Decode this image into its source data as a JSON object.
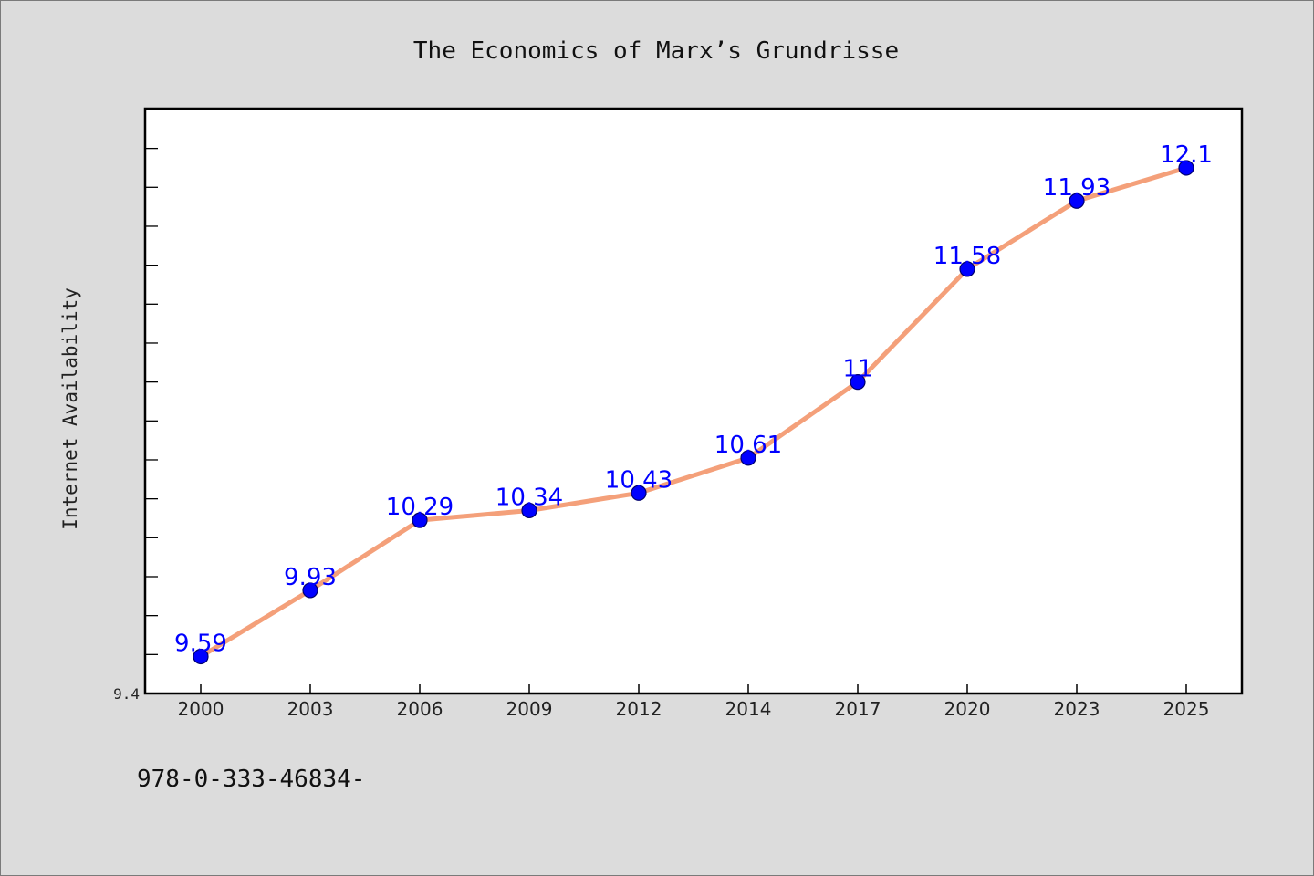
{
  "chart_data": {
    "type": "line",
    "title": "The Economics of Marx’s Grundrisse",
    "xlabel": "",
    "ylabel": "Internet Availability",
    "categories": [
      "2000",
      "2003",
      "2006",
      "2009",
      "2012",
      "2014",
      "2017",
      "2020",
      "2023",
      "2025"
    ],
    "series": [
      {
        "values": [
          9.59,
          9.93,
          10.29,
          10.34,
          10.43,
          10.61,
          11,
          11.58,
          11.93,
          12.1
        ],
        "data_labels": [
          "9.59",
          "9.93",
          "10.29",
          "10.34",
          "10.43",
          "10.61",
          "11",
          "11.58",
          "11.93",
          "12.1"
        ],
        "line_color": "#f4a07a",
        "marker_color": "#0000ff"
      }
    ],
    "ytick_labels": [
      "9.4"
    ],
    "ylim": [
      9.4,
      12.4
    ],
    "grid": false,
    "legend": "none"
  },
  "footer": {
    "isbn": "978-0-333-46834-"
  }
}
